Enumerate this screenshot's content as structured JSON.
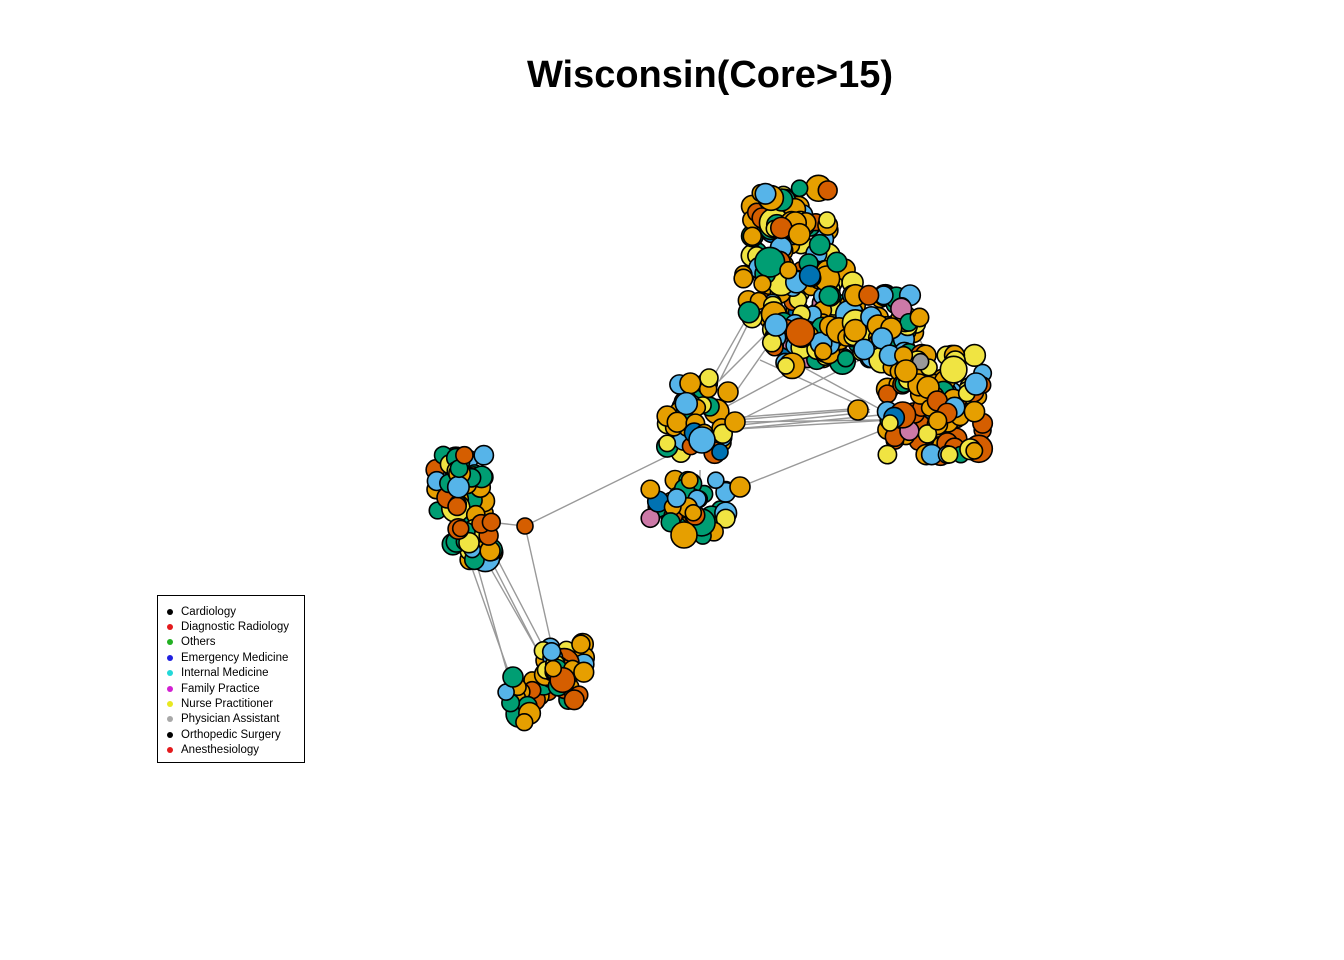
{
  "title": "Wisconsin(Core>15)",
  "legend": {
    "items": [
      {
        "label": "Cardiology",
        "color": "#000000"
      },
      {
        "label": "Diagnostic Radiology",
        "color": "#e41a1c"
      },
      {
        "label": "Others",
        "color": "#22b022"
      },
      {
        "label": "Emergency Medicine",
        "color": "#1f1fe0"
      },
      {
        "label": "Internal Medicine",
        "color": "#22d8d8"
      },
      {
        "label": "Family Practice",
        "color": "#d21fd2"
      },
      {
        "label": "Nurse Practitioner",
        "color": "#e8e820"
      },
      {
        "label": "Physician Assistant",
        "color": "#a8a8a8"
      },
      {
        "label": "Orthopedic Surgery",
        "color": "#000000"
      },
      {
        "label": "Anesthesiology",
        "color": "#e41a1c"
      }
    ]
  },
  "node_palette": [
    "#e69f00",
    "#56b4e9",
    "#f0e442",
    "#d55e00",
    "#009e73",
    "#0072b2",
    "#cc79a7",
    "#999999"
  ],
  "edge_color": "#999999"
}
